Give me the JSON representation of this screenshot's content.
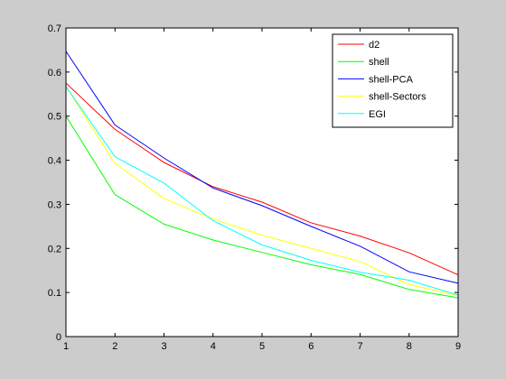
{
  "chart_data": {
    "type": "line",
    "title": "",
    "xlabel": "",
    "ylabel": "",
    "x": [
      1,
      2,
      3,
      4,
      5,
      6,
      7,
      8,
      9
    ],
    "xlim": [
      1,
      9
    ],
    "ylim": [
      0,
      0.7
    ],
    "xticks": [
      "1",
      "2",
      "3",
      "4",
      "5",
      "6",
      "7",
      "8",
      "9"
    ],
    "yticks": [
      "0",
      "0.1",
      "0.2",
      "0.3",
      "0.4",
      "0.5",
      "0.6",
      "0.7"
    ],
    "grid": false,
    "legend_position": "top-right",
    "series": [
      {
        "name": "d2",
        "color": "#ff0000",
        "values": [
          0.575,
          0.47,
          0.395,
          0.34,
          0.305,
          0.258,
          0.228,
          0.19,
          0.14
        ]
      },
      {
        "name": "shell",
        "color": "#00ff00",
        "values": [
          0.5,
          0.322,
          0.255,
          0.219,
          0.191,
          0.163,
          0.141,
          0.107,
          0.088
        ]
      },
      {
        "name": "shell-PCA",
        "color": "#0000ff",
        "values": [
          0.647,
          0.48,
          0.405,
          0.337,
          0.297,
          0.25,
          0.205,
          0.147,
          0.121
        ]
      },
      {
        "name": "shell-Sectors",
        "color": "#ffff00",
        "values": [
          0.567,
          0.393,
          0.313,
          0.267,
          0.23,
          0.2,
          0.17,
          0.118,
          0.093
        ]
      },
      {
        "name": "EGI",
        "color": "#00ffff",
        "values": [
          0.567,
          0.408,
          0.348,
          0.263,
          0.208,
          0.173,
          0.146,
          0.128,
          0.094
        ]
      }
    ]
  }
}
